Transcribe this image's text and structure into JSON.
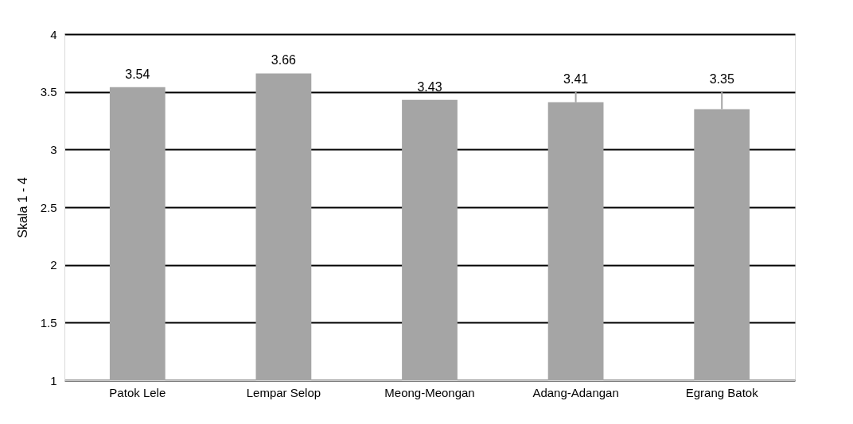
{
  "chart_data": {
    "type": "bar",
    "ylabel": "Skala 1 - 4",
    "categories": [
      "Patok Lele",
      "Lempar Selop",
      "Meong-Meongan",
      "Adang-Adangan",
      "Egrang Batok"
    ],
    "values": [
      3.54,
      3.66,
      3.43,
      3.41,
      3.35
    ],
    "color": "#a5a5a5",
    "errors": [
      null,
      null,
      null,
      [
        3.41,
        3.5
      ],
      [
        3.35,
        3.5
      ]
    ],
    "ylim": [
      1,
      4
    ],
    "yticks": [
      1,
      1.5,
      2,
      2.5,
      3,
      3.5,
      4
    ],
    "grid": "y",
    "data_labels": true
  }
}
